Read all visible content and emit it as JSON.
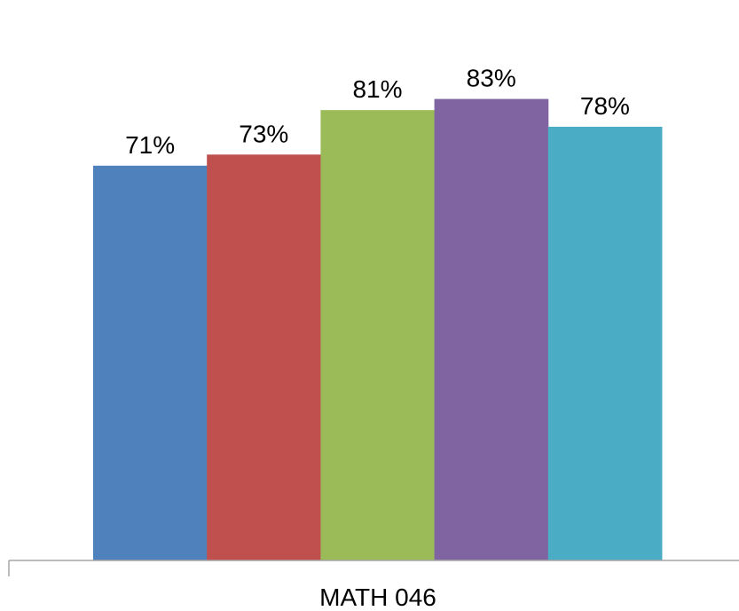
{
  "chart_data": {
    "type": "bar",
    "categories": [
      "MATH 046"
    ],
    "series": [
      {
        "values": [
          0.71
        ],
        "label": "71%",
        "color": "#4F81BD"
      },
      {
        "values": [
          0.73
        ],
        "label": "73%",
        "color": "#C0504D"
      },
      {
        "values": [
          0.81
        ],
        "label": "81%",
        "color": "#9BBB59"
      },
      {
        "values": [
          0.83
        ],
        "label": "83%",
        "color": "#8064A2"
      },
      {
        "values": [
          0.78
        ],
        "label": "78%",
        "color": "#4BACC6"
      }
    ],
    "ylim": [
      0,
      1
    ],
    "grid": false,
    "legend": "none",
    "axis_color": "#A6A6A6"
  }
}
